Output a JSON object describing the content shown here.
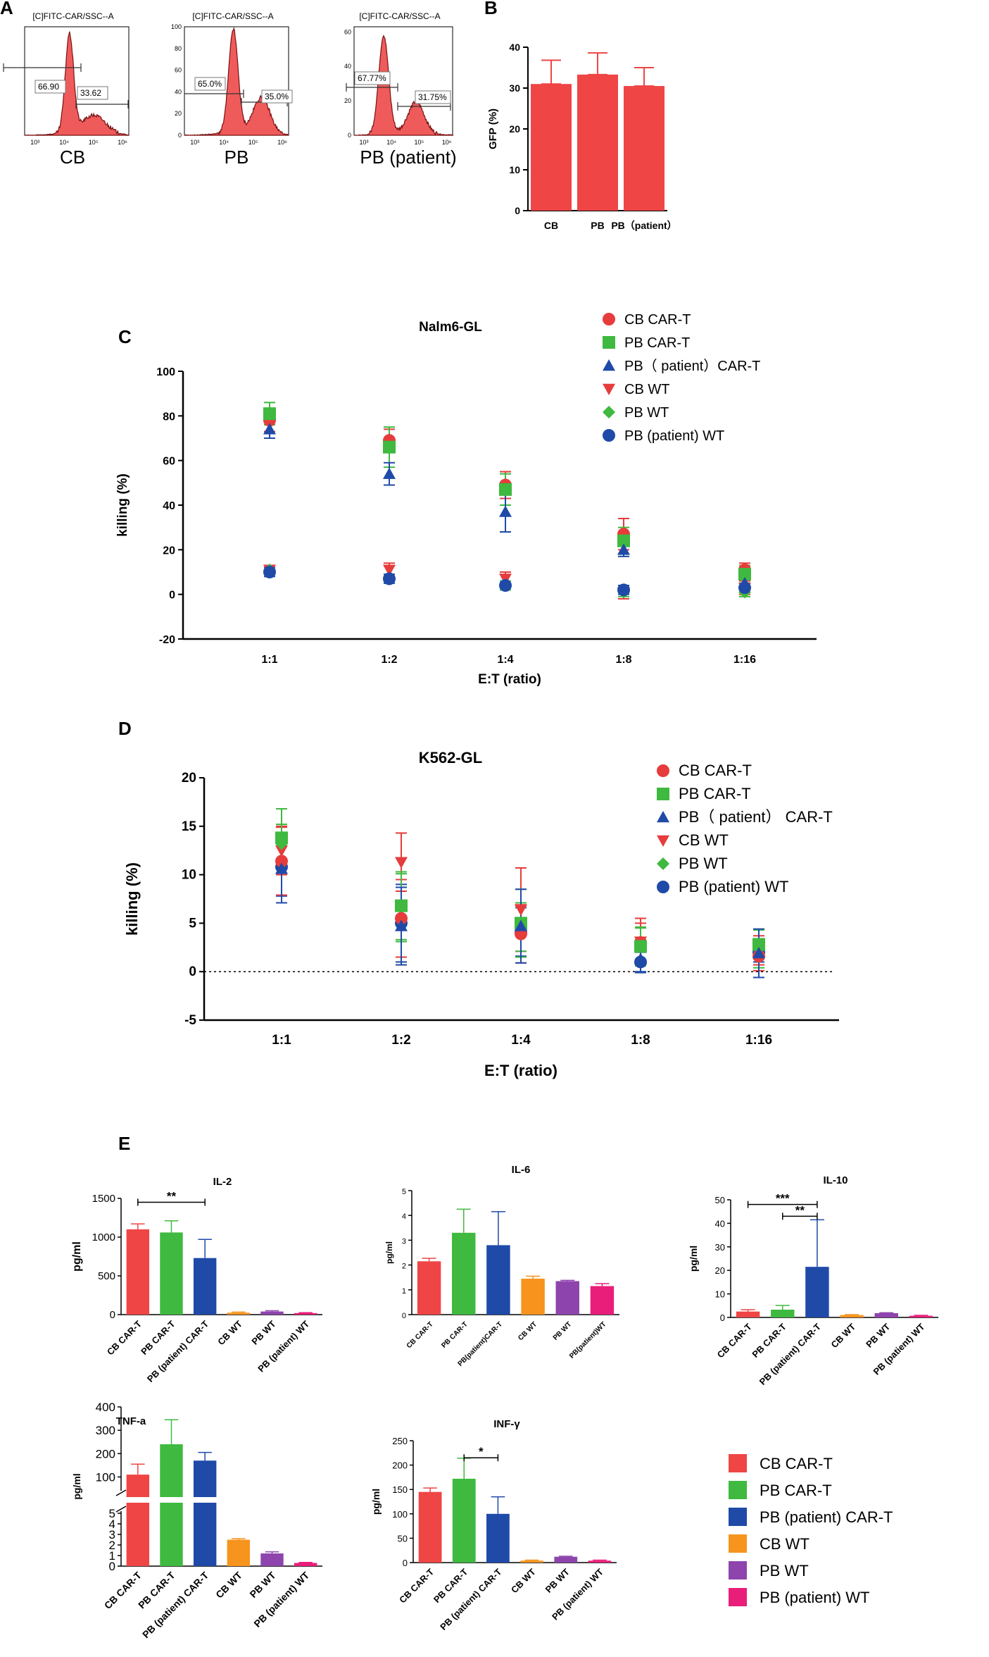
{
  "panels": {
    "A": "A",
    "B": "B",
    "C": "C",
    "D": "D",
    "E": "E"
  },
  "colors": {
    "hist_fill": "#ef5b5b",
    "hist_line": "#7a1010",
    "cb_cart": "#ef4545",
    "pb_cart": "#3fb93f",
    "pbp_cart": "#1f4aa8",
    "cb_wt": "#f7941d",
    "pb_wt": "#8e44ad",
    "pbp_wt": "#e91e7a",
    "cb_wt_c": "#e63c3c",
    "pb_wt_c": "#3fb93f",
    "pbp_wt_c": "#1f4aa8"
  },
  "chart_data": [
    {
      "id": "hist-cb",
      "type": "histogram",
      "title": "[C]FITC-CAR/SSC--A",
      "caption": "CB",
      "yticks": [],
      "xticks": [
        "10³",
        "10⁴",
        "10⁵",
        "10⁶"
      ],
      "gates": [
        {
          "label": "66.90"
        },
        {
          "label": "33.62"
        }
      ]
    },
    {
      "id": "hist-pb",
      "type": "histogram",
      "title": "[C]FITC-CAR/SSC--A",
      "caption": "PB",
      "yticks": [
        "0",
        "20",
        "40",
        "60",
        "80",
        "100"
      ],
      "xticks": [
        "10³",
        "10⁴",
        "10⁵",
        "10⁶"
      ],
      "gates": [
        {
          "label": "65.0%"
        },
        {
          "label": "35.0%"
        }
      ]
    },
    {
      "id": "hist-pbp",
      "type": "histogram",
      "title": "[C]FITC-CAR/SSC--A",
      "caption": "PB (patient)",
      "yticks": [
        "0",
        "20",
        "40",
        "60"
      ],
      "xticks": [
        "10³",
        "10⁴",
        "10⁵",
        "10⁶"
      ],
      "gates": [
        {
          "label": "67.77%"
        },
        {
          "label": "31.75%"
        }
      ]
    },
    {
      "id": "gfp-bar",
      "type": "bar",
      "categories": [
        "CB",
        "PB",
        "PB（patient）"
      ],
      "values": [
        31,
        33.3,
        30.5
      ],
      "errors": [
        5.8,
        5.3,
        4.5
      ],
      "ylabel": "GFP (%)",
      "ylim": [
        0,
        40
      ],
      "yticks": [
        0,
        10,
        20,
        30,
        40
      ]
    },
    {
      "id": "nalm6",
      "type": "scatter",
      "title": "Nalm6-GL",
      "xlabel": "E:T (ratio)",
      "ylabel": "killing (%)",
      "categories": [
        "1:1",
        "1:2",
        "1:4",
        "1:8",
        "1:16"
      ],
      "ylim": [
        -20,
        100
      ],
      "yticks": [
        -20,
        0,
        20,
        40,
        60,
        80,
        100
      ],
      "legend": [
        "CB CAR-T",
        "PB CAR-T",
        "PB（ patient）CAR-T",
        "CB WT",
        "PB WT",
        "PB (patient) WT"
      ],
      "series": [
        {
          "name": "CB CAR-T",
          "values": [
            78,
            69,
            49,
            27,
            11
          ],
          "errors": [
            5,
            5,
            6,
            7,
            3
          ]
        },
        {
          "name": "PB CAR-T",
          "values": [
            81,
            66,
            47,
            24,
            9
          ],
          "errors": [
            5,
            9,
            7,
            6,
            4
          ]
        },
        {
          "name": "PB（ patient）CAR-T",
          "values": [
            74,
            54,
            37,
            20,
            5
          ],
          "errors": [
            4,
            5,
            9,
            3,
            3
          ]
        },
        {
          "name": "CB WT",
          "values": [
            11,
            11,
            7,
            1,
            3
          ],
          "errors": [
            2,
            3,
            3,
            3,
            3
          ]
        },
        {
          "name": "PB WT",
          "values": [
            11,
            7,
            4,
            1,
            1
          ],
          "errors": [
            1,
            2,
            2,
            2,
            2
          ]
        },
        {
          "name": "PB (patient) WT",
          "values": [
            10,
            7,
            4,
            2,
            3
          ],
          "errors": [
            2,
            2,
            1,
            2,
            2
          ]
        }
      ]
    },
    {
      "id": "k562",
      "type": "scatter",
      "title": "K562-GL",
      "xlabel": "E:T (ratio)",
      "ylabel": "killing (%)",
      "categories": [
        "1:1",
        "1:2",
        "1:4",
        "1:8",
        "1:16"
      ],
      "ylim": [
        -5,
        20
      ],
      "yticks": [
        -5,
        0,
        5,
        10,
        15,
        20
      ],
      "legend": [
        "CB CAR-T",
        "PB CAR-T",
        "PB（ patient） CAR-T",
        "CB WT",
        "PB WT",
        "PB (patient) WT"
      ],
      "series": [
        {
          "name": "CB CAR-T",
          "values": [
            11.4,
            5.5,
            3.9,
            3.0,
            1.6
          ],
          "errors": [
            3.5,
            4.0,
            3.0,
            2.0,
            1.5
          ]
        },
        {
          "name": "PB CAR-T",
          "values": [
            13.8,
            6.8,
            5.0,
            2.6,
            2.8
          ],
          "errors": [
            3.0,
            3.5,
            3.5,
            2.0,
            1.5
          ]
        },
        {
          "name": "PB（ patient） CAR-T",
          "values": [
            10.6,
            4.7,
            4.7,
            1.3,
            1.9
          ],
          "errors": [
            3.5,
            4.0,
            3.8,
            1.4,
            2.5
          ]
        },
        {
          "name": "CB WT",
          "values": [
            12.5,
            11.3,
            6.4,
            3.1,
            2.2
          ],
          "errors": [
            2.5,
            3.0,
            4.3,
            2.4,
            1.5
          ]
        },
        {
          "name": "PB WT",
          "values": [
            13.2,
            6.6,
            4.6,
            2.7,
            1.9
          ],
          "errors": [
            2.0,
            3.5,
            2.5,
            1.8,
            1.5
          ]
        },
        {
          "name": "PB (patient) WT",
          "values": [
            10.8,
            5.0,
            4.1,
            1.0,
            2.0
          ],
          "errors": [
            3.0,
            4.0,
            2.5,
            1.0,
            1.0
          ]
        }
      ]
    },
    {
      "id": "il2",
      "type": "bar",
      "title": "IL-2",
      "ylabel": "pg/ml",
      "categories": [
        "CB CAR-T",
        "PB CAR-T",
        "PB (patient) CAR-T",
        "CB WT",
        "PB WT",
        "PB (patient) WT"
      ],
      "values": [
        1100,
        1060,
        730,
        25,
        40,
        20
      ],
      "errors": [
        70,
        150,
        240,
        8,
        10,
        5
      ],
      "ylim": [
        0,
        1500
      ],
      "yticks": [
        0,
        500,
        1000,
        1500
      ],
      "sig": [
        {
          "label": "**",
          "from": 0,
          "to": 2,
          "level": 1450
        }
      ]
    },
    {
      "id": "il6",
      "type": "bar",
      "title": "IL-6",
      "ylabel": "pg/ml",
      "categories": [
        "CB CAR-T",
        "PB CAR-T",
        "PB(patient)CAR-T",
        "CB WT",
        "PB WT",
        "PB(patient)WT"
      ],
      "values": [
        2.15,
        3.3,
        2.8,
        1.45,
        1.35,
        1.15
      ],
      "errors": [
        0.12,
        0.95,
        1.35,
        0.1,
        0.03,
        0.1
      ],
      "ylim": [
        0,
        5
      ],
      "yticks": [
        0,
        1,
        2,
        3,
        4,
        5
      ],
      "sig": []
    },
    {
      "id": "il10",
      "type": "bar",
      "title": "IL-10",
      "ylabel": "pg/ml",
      "categories": [
        "CB CAR-T",
        "PB CAR-T",
        "PB (patient) CAR-T",
        "CB WT",
        "PB WT",
        "PB (patient) WT"
      ],
      "values": [
        2.5,
        3.3,
        21.5,
        1.0,
        1.8,
        0.7
      ],
      "errors": [
        0.8,
        1.8,
        20,
        0.2,
        0.2,
        0.2
      ],
      "ylim": [
        0,
        50
      ],
      "yticks": [
        0,
        10,
        20,
        30,
        40,
        50
      ],
      "sig": [
        {
          "label": "***",
          "from": 0,
          "to": 2,
          "level": 48
        },
        {
          "label": "**",
          "from": 1,
          "to": 2,
          "level": 43
        }
      ]
    },
    {
      "id": "tnfa",
      "type": "bar",
      "title": "TNF-a",
      "ylabel": "pg/ml",
      "broken_axis": true,
      "categories": [
        "CB CAR-T",
        "PB CAR-T",
        "PB (patient) CAR-T",
        "CB WT",
        "PB WT",
        "PB (patient) WT"
      ],
      "values": [
        110,
        240,
        170,
        2.5,
        1.2,
        0.3
      ],
      "errors": [
        45,
        105,
        35,
        0.1,
        0.15,
        0.05
      ],
      "yticks_upper": [
        100,
        200,
        300,
        400
      ],
      "yticks_lower": [
        0,
        1,
        2,
        3,
        4,
        5
      ],
      "sig": []
    },
    {
      "id": "infg",
      "type": "bar",
      "title": "INF-γ",
      "ylabel": "pg/ml",
      "categories": [
        "CB CAR-T",
        "PB CAR-T",
        "PB (patient) CAR-T",
        "CB WT",
        "PB WT",
        "PB (patient) WT"
      ],
      "values": [
        145,
        172,
        100,
        4,
        12,
        4
      ],
      "errors": [
        8,
        42,
        35,
        1,
        1,
        1
      ],
      "ylim": [
        0,
        250
      ],
      "yticks": [
        0,
        50,
        100,
        150,
        200,
        250
      ],
      "sig": [
        {
          "label": "*",
          "from": 1,
          "to": 2,
          "level": 215
        }
      ]
    }
  ],
  "cytokine_legend": [
    "CB CAR-T",
    "PB CAR-T",
    "PB (patient) CAR-T",
    "CB WT",
    "PB WT",
    "PB (patient) WT"
  ]
}
